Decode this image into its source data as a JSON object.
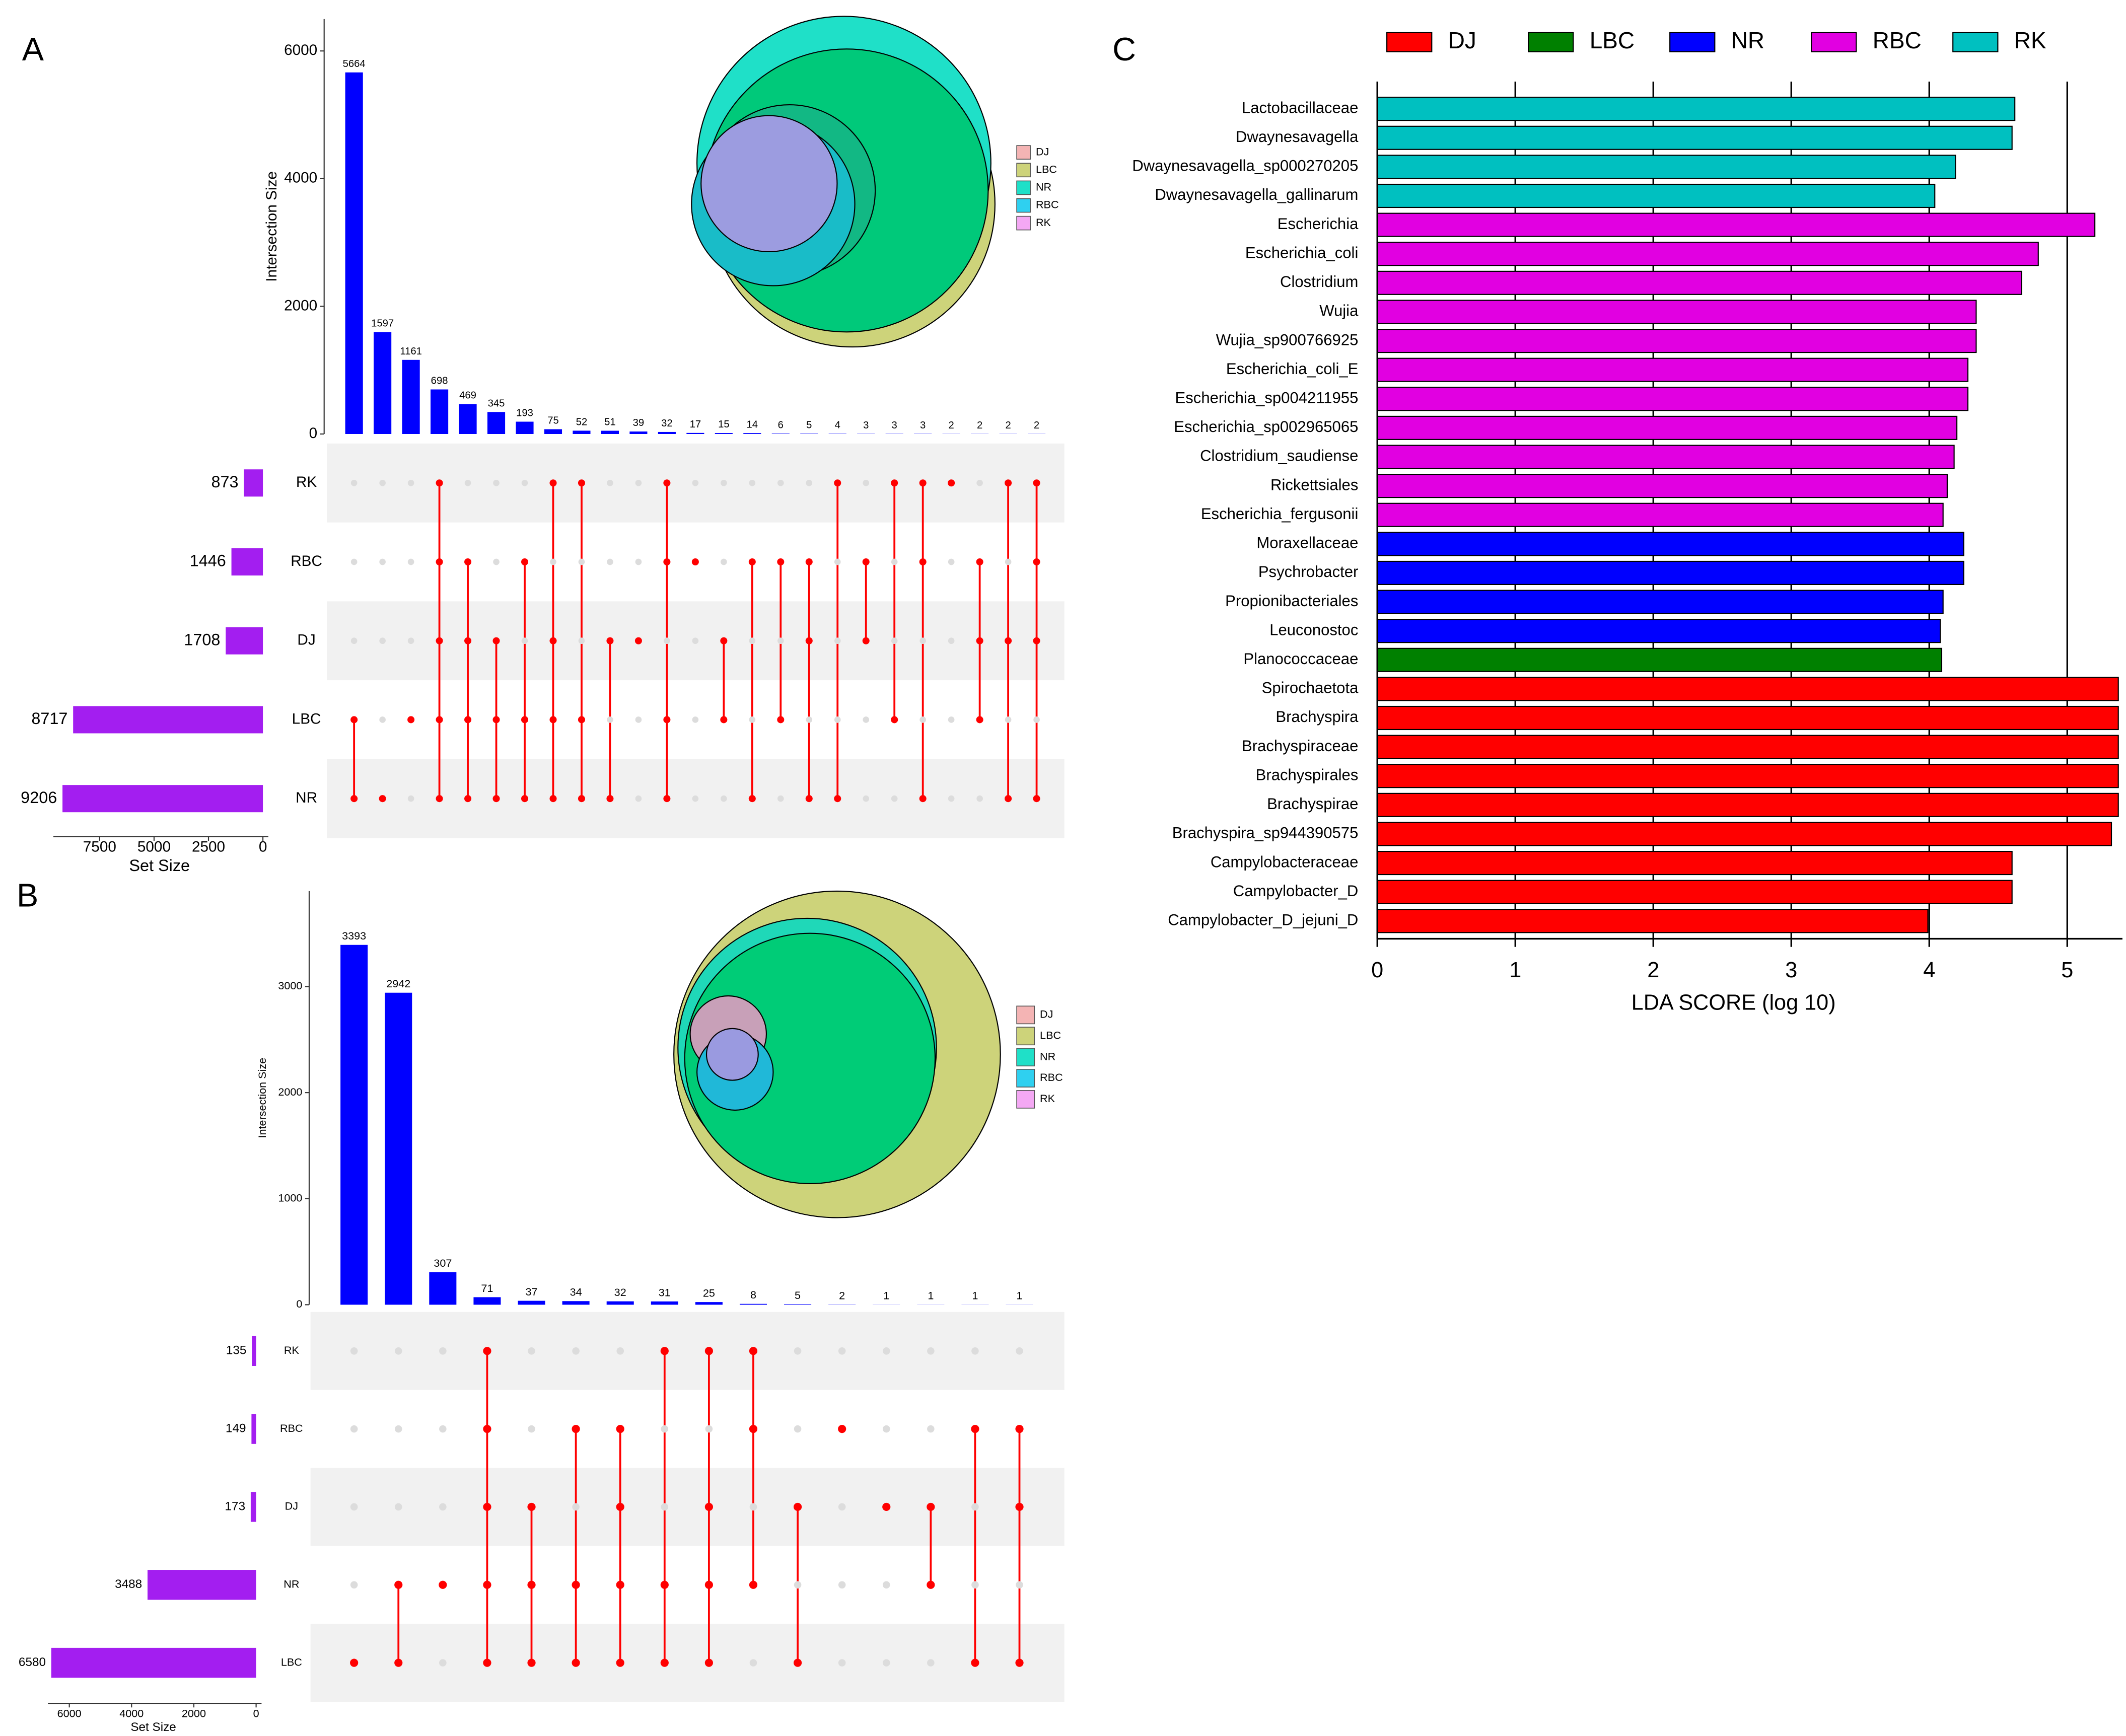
{
  "chart_data": [
    {
      "type": "upset",
      "panel": "A",
      "ylabel": "Intersection Size",
      "xlabel": "Set Size",
      "sets": [
        "RK",
        "RBC",
        "DJ",
        "LBC",
        "NR"
      ],
      "set_sizes": [
        873,
        1446,
        1708,
        8717,
        9206
      ],
      "intersections": [
        5664,
        1597,
        1161,
        698,
        469,
        345,
        193,
        75,
        52,
        51,
        39,
        32,
        17,
        15,
        14,
        6,
        5,
        4,
        3,
        3,
        3,
        2,
        2,
        2,
        2
      ],
      "membership": [
        [
          0,
          0,
          0,
          1,
          1
        ],
        [
          0,
          0,
          0,
          0,
          1
        ],
        [
          0,
          0,
          0,
          1,
          0
        ],
        [
          1,
          1,
          1,
          1,
          1
        ],
        [
          0,
          1,
          1,
          1,
          1
        ],
        [
          0,
          0,
          1,
          1,
          1
        ],
        [
          0,
          1,
          0,
          1,
          1
        ],
        [
          1,
          0,
          1,
          1,
          1
        ],
        [
          1,
          0,
          0,
          1,
          1
        ],
        [
          0,
          0,
          1,
          0,
          1
        ],
        [
          0,
          0,
          1,
          0,
          0
        ],
        [
          1,
          1,
          0,
          1,
          1
        ],
        [
          0,
          1,
          0,
          0,
          0
        ],
        [
          0,
          0,
          1,
          1,
          0
        ],
        [
          0,
          1,
          0,
          0,
          1
        ],
        [
          0,
          1,
          0,
          1,
          0
        ],
        [
          0,
          1,
          1,
          0,
          1
        ],
        [
          1,
          0,
          0,
          0,
          1
        ],
        [
          0,
          1,
          1,
          0,
          0
        ],
        [
          1,
          0,
          0,
          1,
          0
        ],
        [
          1,
          1,
          0,
          0,
          1
        ],
        [
          1,
          0,
          0,
          0,
          0
        ],
        [
          0,
          1,
          1,
          1,
          0
        ],
        [
          1,
          0,
          1,
          0,
          1
        ],
        [
          1,
          1,
          1,
          0,
          1
        ]
      ],
      "ylim": [
        0,
        6500
      ],
      "yticks": [
        0,
        2000,
        4000,
        6000
      ],
      "xlim": [
        0,
        9500
      ],
      "xticks": [
        7500,
        5000,
        2500,
        0
      ],
      "bar_color": "#0000ff",
      "set_bar_color": "#a31ef0",
      "dot_color": "#ff0000",
      "venn_legend": {
        "names": [
          "DJ",
          "LBC",
          "NR",
          "RBC",
          "RK"
        ],
        "colors": [
          "#f4b4b4",
          "#cdd37a",
          "#1fe0c8",
          "#2fd0f0",
          "#f4a8f4"
        ]
      }
    },
    {
      "type": "upset",
      "panel": "B",
      "ylabel": "Intersection Size",
      "xlabel": "Set Size",
      "sets": [
        "RK",
        "RBC",
        "DJ",
        "NR",
        "LBC"
      ],
      "set_sizes": [
        135,
        149,
        173,
        3488,
        6580
      ],
      "intersections": [
        3393,
        2942,
        307,
        71,
        37,
        34,
        32,
        31,
        25,
        8,
        5,
        2,
        1,
        1,
        1,
        1
      ],
      "membership": [
        [
          0,
          0,
          0,
          0,
          1
        ],
        [
          0,
          0,
          0,
          1,
          1
        ],
        [
          0,
          0,
          0,
          1,
          0
        ],
        [
          1,
          1,
          1,
          1,
          1
        ],
        [
          0,
          0,
          1,
          1,
          1
        ],
        [
          0,
          1,
          0,
          1,
          1
        ],
        [
          0,
          1,
          1,
          1,
          1
        ],
        [
          1,
          0,
          0,
          1,
          1
        ],
        [
          1,
          0,
          1,
          1,
          1
        ],
        [
          1,
          1,
          0,
          1,
          0
        ],
        [
          0,
          0,
          1,
          0,
          1
        ],
        [
          0,
          1,
          0,
          0,
          0
        ],
        [
          0,
          0,
          1,
          0,
          0
        ],
        [
          0,
          0,
          1,
          1,
          0
        ],
        [
          0,
          1,
          0,
          0,
          1
        ],
        [
          0,
          1,
          1,
          0,
          1
        ]
      ],
      "ylim": [
        0,
        3900
      ],
      "yticks": [
        0,
        1000,
        2000,
        3000
      ],
      "xlim": [
        0,
        6600
      ],
      "xticks": [
        6000,
        4000,
        2000,
        0
      ],
      "bar_color": "#0000ff",
      "set_bar_color": "#a31ef0",
      "dot_color": "#ff0000",
      "venn_legend": {
        "names": [
          "DJ",
          "LBC",
          "NR",
          "RBC",
          "RK"
        ],
        "colors": [
          "#f4b4b4",
          "#cdd37a",
          "#1fe0c8",
          "#2fd0f0",
          "#f4a8f4"
        ]
      }
    },
    {
      "type": "barh",
      "panel": "C",
      "xlabel": "LDA SCORE (log 10)",
      "categories": [
        "Lactobacillaceae",
        "Dwaynesavagella",
        "Dwaynesavagella_sp000270205",
        "Dwaynesavagella_gallinarum",
        "Escherichia",
        "Escherichia_coli",
        "Clostridium",
        "Wujia",
        "Wujia_sp900766925",
        "Escherichia_coli_E",
        "Escherichia_sp004211955",
        "Escherichia_sp002965065",
        "Clostridium_saudiense",
        "Rickettsiales",
        "Escherichia_fergusonii",
        "Moraxellaceae",
        "Psychrobacter",
        "Propionibacteriales",
        "Leuconostoc",
        "Planococcaceae",
        "Spirochaetota",
        "Brachyspira",
        "Brachyspiraceae",
        "Brachyspirales",
        "Brachyspirae",
        "Brachyspira_sp944390575",
        "Campylobacteraceae",
        "Campylobacter_D",
        "Campylobacter_D_jejuni_D"
      ],
      "series": [
        {
          "name": "DJ",
          "color": "#ff0000",
          "values": [
            null,
            null,
            null,
            null,
            null,
            null,
            null,
            null,
            null,
            null,
            null,
            null,
            null,
            null,
            null,
            null,
            null,
            null,
            null,
            null,
            5.37,
            5.37,
            5.37,
            5.37,
            5.37,
            5.32,
            4.6,
            4.6,
            3.99
          ]
        },
        {
          "name": "LBC",
          "color": "#008000",
          "values": [
            null,
            null,
            null,
            null,
            null,
            null,
            null,
            null,
            null,
            null,
            null,
            null,
            null,
            null,
            null,
            null,
            null,
            null,
            null,
            4.09,
            null,
            null,
            null,
            null,
            null,
            null,
            null,
            null,
            null
          ]
        },
        {
          "name": "NR",
          "color": "#0000ff",
          "values": [
            null,
            null,
            null,
            null,
            null,
            null,
            null,
            null,
            null,
            null,
            null,
            null,
            null,
            null,
            null,
            4.25,
            4.25,
            4.1,
            4.08,
            null,
            null,
            null,
            null,
            null,
            null,
            null,
            null,
            null,
            null
          ]
        },
        {
          "name": "RBC",
          "color": "#e100e1",
          "values": [
            null,
            null,
            null,
            null,
            5.2,
            4.79,
            4.67,
            4.34,
            4.34,
            4.28,
            4.28,
            4.2,
            4.18,
            4.13,
            4.1,
            null,
            null,
            null,
            null,
            null,
            null,
            null,
            null,
            null,
            null,
            null,
            null,
            null,
            null
          ]
        },
        {
          "name": "RK",
          "color": "#00c0c0",
          "values": [
            4.62,
            4.6,
            4.19,
            4.04,
            null,
            null,
            null,
            null,
            null,
            null,
            null,
            null,
            null,
            null,
            null,
            null,
            null,
            null,
            null,
            null,
            null,
            null,
            null,
            null,
            null,
            null,
            null,
            null,
            null
          ]
        }
      ],
      "xlim": [
        0,
        5.4
      ],
      "xticks": [
        0,
        1,
        2,
        3,
        4,
        5
      ],
      "grid": true
    }
  ]
}
